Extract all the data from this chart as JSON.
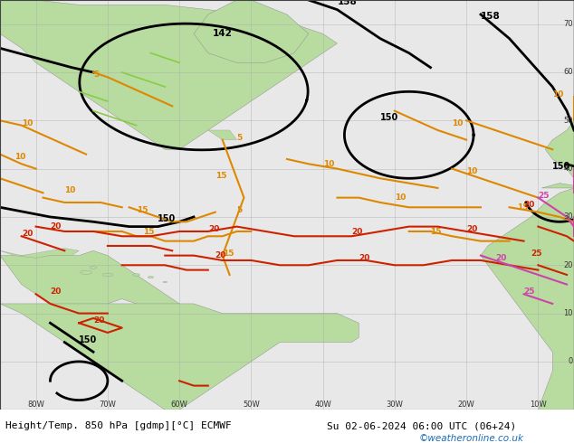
{
  "title_left": "Height/Temp. 850 hPa [gdmp][°C] ECMWF",
  "title_right": "Su 02-06-2024 06:00 UTC (06+24)",
  "watermark": "©weatheronline.co.uk",
  "bg_ocean": "#e8e8e8",
  "land_color": "#b8dba0",
  "grid_color": "#aaaaaa",
  "black_contour": "#000000",
  "orange_contour": "#dd8800",
  "red_contour": "#cc2200",
  "pink_contour": "#cc44aa",
  "green_contour": "#88cc44",
  "watermark_color": "#1a6bb5",
  "lon_min": -85,
  "lon_max": -5,
  "lat_min": -10,
  "lat_max": 75
}
